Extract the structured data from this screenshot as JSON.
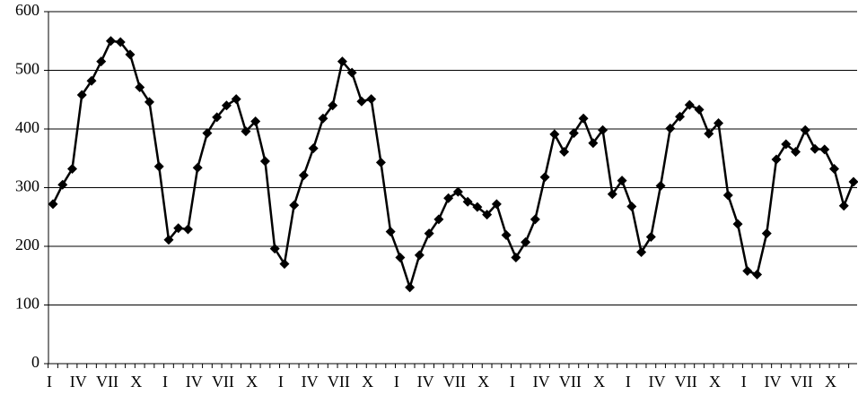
{
  "chart_data": {
    "type": "line",
    "categories": [
      "I",
      null,
      null,
      "IV",
      null,
      null,
      "VII",
      null,
      null,
      "X",
      null,
      null,
      "I",
      null,
      null,
      "IV",
      null,
      null,
      "VII",
      null,
      null,
      "X",
      null,
      null,
      "I",
      null,
      null,
      "IV",
      null,
      null,
      "VII",
      null,
      null,
      "X",
      null,
      null,
      "I",
      null,
      null,
      "IV",
      null,
      null,
      "VII",
      null,
      null,
      "X",
      null,
      null,
      "I",
      null,
      null,
      "IV",
      null,
      null,
      "VII",
      null,
      null,
      "X",
      null,
      null,
      "I",
      null,
      null,
      "IV",
      null,
      null,
      "VII",
      null,
      null,
      "X",
      null,
      null,
      "I",
      null,
      null,
      "IV",
      null,
      null,
      "VII",
      null,
      null,
      "X",
      null,
      null
    ],
    "values": [
      272,
      305,
      332,
      458,
      482,
      515,
      550,
      548,
      527,
      471,
      446,
      336,
      211,
      231,
      229,
      334,
      393,
      420,
      440,
      451,
      396,
      413,
      345,
      196,
      170,
      270,
      321,
      367,
      418,
      440,
      515,
      496,
      447,
      451,
      343,
      225,
      181,
      130,
      185,
      222,
      246,
      282,
      293,
      276,
      267,
      254,
      272,
      219,
      181,
      207,
      246,
      318,
      391,
      361,
      393,
      418,
      376,
      398,
      289,
      312,
      268,
      190,
      216,
      303,
      401,
      421,
      441,
      433,
      392,
      410,
      287,
      238,
      158,
      152,
      222,
      348,
      374,
      361,
      398,
      366,
      365,
      332,
      269,
      310
    ],
    "color": "#000000",
    "ylim": [
      0,
      600
    ],
    "yticks": [
      0,
      100,
      200,
      300,
      400,
      500,
      600
    ],
    "grid": true
  }
}
